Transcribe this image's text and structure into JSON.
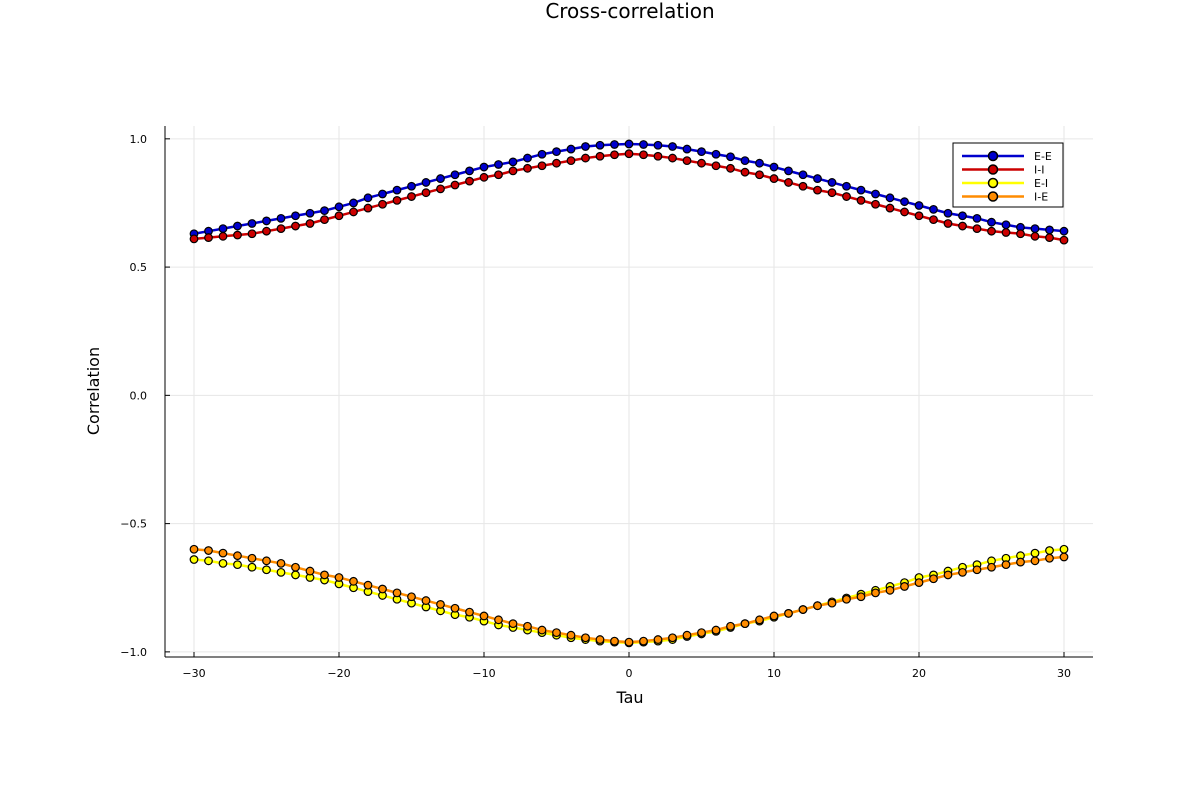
{
  "chart_data": {
    "type": "line",
    "title": "Cross-correlation",
    "xlabel": "Tau",
    "ylabel": "Correlation",
    "xlim": [
      -32,
      32
    ],
    "ylim": [
      -1.02,
      1.05
    ],
    "xticks": [
      -30,
      -20,
      -10,
      0,
      10,
      20,
      30
    ],
    "xtick_labels": [
      "−30",
      "−20",
      "−10",
      "0",
      "10",
      "20",
      "30"
    ],
    "yticks": [
      -1.0,
      -0.5,
      0.0,
      0.5,
      1.0
    ],
    "ytick_labels": [
      "−1.0",
      "−0.5",
      "0.0",
      "0.5",
      "1.0"
    ],
    "grid": true,
    "legend_position": "top-right",
    "x": [
      -30,
      -29,
      -28,
      -27,
      -26,
      -25,
      -24,
      -23,
      -22,
      -21,
      -20,
      -19,
      -18,
      -17,
      -16,
      -15,
      -14,
      -13,
      -12,
      -11,
      -10,
      -9,
      -8,
      -7,
      -6,
      -5,
      -4,
      -3,
      -2,
      -1,
      0,
      1,
      2,
      3,
      4,
      5,
      6,
      7,
      8,
      9,
      10,
      11,
      12,
      13,
      14,
      15,
      16,
      17,
      18,
      19,
      20,
      21,
      22,
      23,
      24,
      25,
      26,
      27,
      28,
      29,
      30
    ],
    "series": [
      {
        "name": "E-E",
        "color": "#0000cd",
        "values": [
          0.63,
          0.64,
          0.65,
          0.66,
          0.67,
          0.68,
          0.69,
          0.7,
          0.71,
          0.72,
          0.735,
          0.75,
          0.77,
          0.785,
          0.8,
          0.815,
          0.83,
          0.845,
          0.86,
          0.875,
          0.89,
          0.9,
          0.91,
          0.925,
          0.94,
          0.95,
          0.96,
          0.97,
          0.975,
          0.978,
          0.98,
          0.978,
          0.975,
          0.97,
          0.96,
          0.95,
          0.94,
          0.93,
          0.915,
          0.905,
          0.89,
          0.875,
          0.86,
          0.845,
          0.83,
          0.815,
          0.8,
          0.785,
          0.77,
          0.755,
          0.74,
          0.725,
          0.71,
          0.7,
          0.69,
          0.675,
          0.665,
          0.655,
          0.65,
          0.645,
          0.64
        ]
      },
      {
        "name": "I-I",
        "color": "#cc0000",
        "values": [
          0.61,
          0.615,
          0.62,
          0.625,
          0.63,
          0.64,
          0.65,
          0.66,
          0.67,
          0.685,
          0.7,
          0.715,
          0.73,
          0.745,
          0.76,
          0.775,
          0.79,
          0.805,
          0.82,
          0.835,
          0.85,
          0.86,
          0.875,
          0.885,
          0.895,
          0.905,
          0.915,
          0.925,
          0.932,
          0.938,
          0.942,
          0.938,
          0.932,
          0.925,
          0.915,
          0.905,
          0.895,
          0.885,
          0.87,
          0.86,
          0.845,
          0.83,
          0.815,
          0.8,
          0.79,
          0.775,
          0.76,
          0.745,
          0.73,
          0.715,
          0.7,
          0.685,
          0.67,
          0.66,
          0.65,
          0.64,
          0.635,
          0.63,
          0.62,
          0.615,
          0.605
        ]
      },
      {
        "name": "E-I",
        "color": "#ffff00",
        "values": [
          -0.64,
          -0.645,
          -0.655,
          -0.66,
          -0.67,
          -0.68,
          -0.69,
          -0.7,
          -0.71,
          -0.72,
          -0.735,
          -0.75,
          -0.765,
          -0.78,
          -0.795,
          -0.81,
          -0.825,
          -0.84,
          -0.855,
          -0.865,
          -0.88,
          -0.895,
          -0.905,
          -0.915,
          -0.925,
          -0.935,
          -0.945,
          -0.952,
          -0.958,
          -0.962,
          -0.965,
          -0.962,
          -0.958,
          -0.952,
          -0.94,
          -0.93,
          -0.92,
          -0.905,
          -0.89,
          -0.88,
          -0.865,
          -0.85,
          -0.835,
          -0.82,
          -0.805,
          -0.79,
          -0.775,
          -0.76,
          -0.745,
          -0.73,
          -0.71,
          -0.7,
          -0.685,
          -0.67,
          -0.66,
          -0.645,
          -0.635,
          -0.625,
          -0.615,
          -0.605,
          -0.6
        ]
      },
      {
        "name": "I-E",
        "color": "#ff8c00",
        "values": [
          -0.6,
          -0.605,
          -0.615,
          -0.625,
          -0.635,
          -0.645,
          -0.655,
          -0.67,
          -0.685,
          -0.7,
          -0.71,
          -0.725,
          -0.74,
          -0.755,
          -0.77,
          -0.785,
          -0.8,
          -0.815,
          -0.83,
          -0.845,
          -0.86,
          -0.875,
          -0.89,
          -0.9,
          -0.915,
          -0.925,
          -0.935,
          -0.945,
          -0.952,
          -0.958,
          -0.962,
          -0.958,
          -0.952,
          -0.945,
          -0.935,
          -0.925,
          -0.915,
          -0.9,
          -0.89,
          -0.875,
          -0.86,
          -0.85,
          -0.835,
          -0.82,
          -0.81,
          -0.795,
          -0.785,
          -0.77,
          -0.76,
          -0.745,
          -0.73,
          -0.715,
          -0.7,
          -0.69,
          -0.68,
          -0.67,
          -0.66,
          -0.65,
          -0.645,
          -0.635,
          -0.63
        ]
      }
    ]
  }
}
